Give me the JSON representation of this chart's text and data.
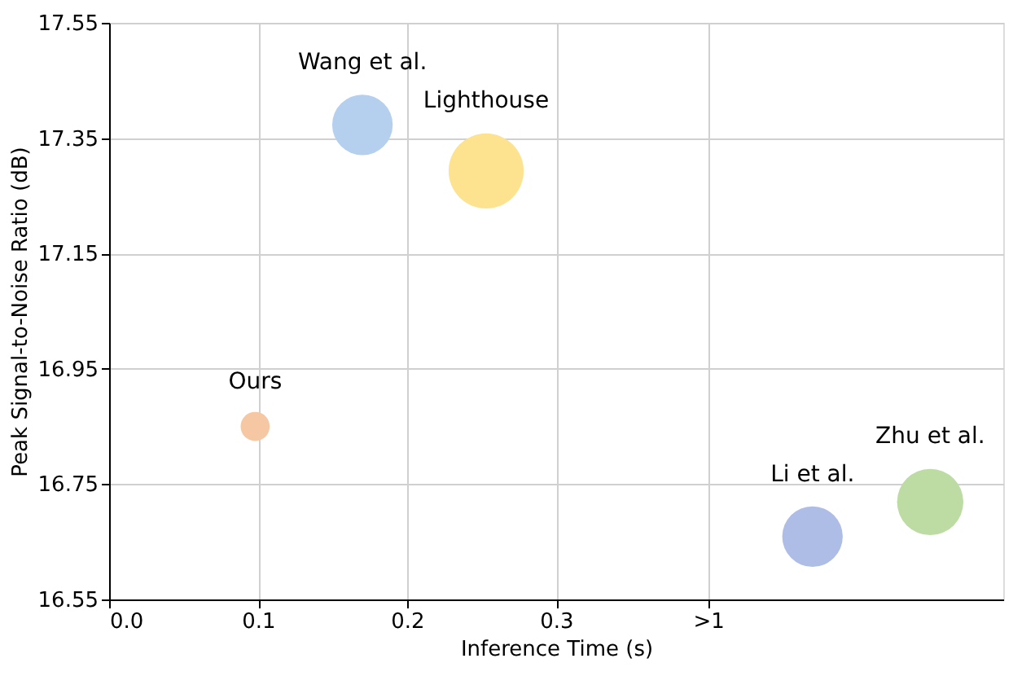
{
  "chart_data": {
    "type": "bubble",
    "xlabel": "Inference Time (s)",
    "ylabel": "Peak Signal-to-Noise Ratio (dB)",
    "xlim": [
      0,
      0.6
    ],
    "xticks": [
      {
        "value": 0,
        "label": "0.0"
      },
      0.1,
      0.2,
      0.3,
      {
        "value": 0.402,
        "label": ">1"
      }
    ],
    "ylim": [
      16.55,
      17.55
    ],
    "yticks": [
      16.55,
      16.75,
      16.95,
      17.15,
      17.35,
      17.55
    ],
    "grid": true,
    "series": [
      {
        "name": "Ours",
        "color": "#f6c7a3",
        "x": [
          0.098
        ],
        "values": [
          16.85
        ],
        "sizes": [
          0.15
        ]
      },
      {
        "name": "Wang et al.",
        "color": "#b4d0ee",
        "x": [
          0.17
        ],
        "values": [
          17.373
        ],
        "sizes": [
          0.65
        ]
      },
      {
        "name": "Lighthouse",
        "color": "#fde28f",
        "x": [
          0.253
        ],
        "values": [
          17.293
        ],
        "sizes": [
          1
        ]
      },
      {
        "name": "Li et al.",
        "color": "#aebde6",
        "x": [
          0.472
        ],
        "values": [
          16.659
        ],
        "sizes": [
          0.65
        ]
      },
      {
        "name": "Zhu et al.",
        "color": "#bddca3",
        "x": [
          0.551
        ],
        "values": [
          16.719
        ],
        "sizes": [
          0.78
        ]
      }
    ]
  }
}
